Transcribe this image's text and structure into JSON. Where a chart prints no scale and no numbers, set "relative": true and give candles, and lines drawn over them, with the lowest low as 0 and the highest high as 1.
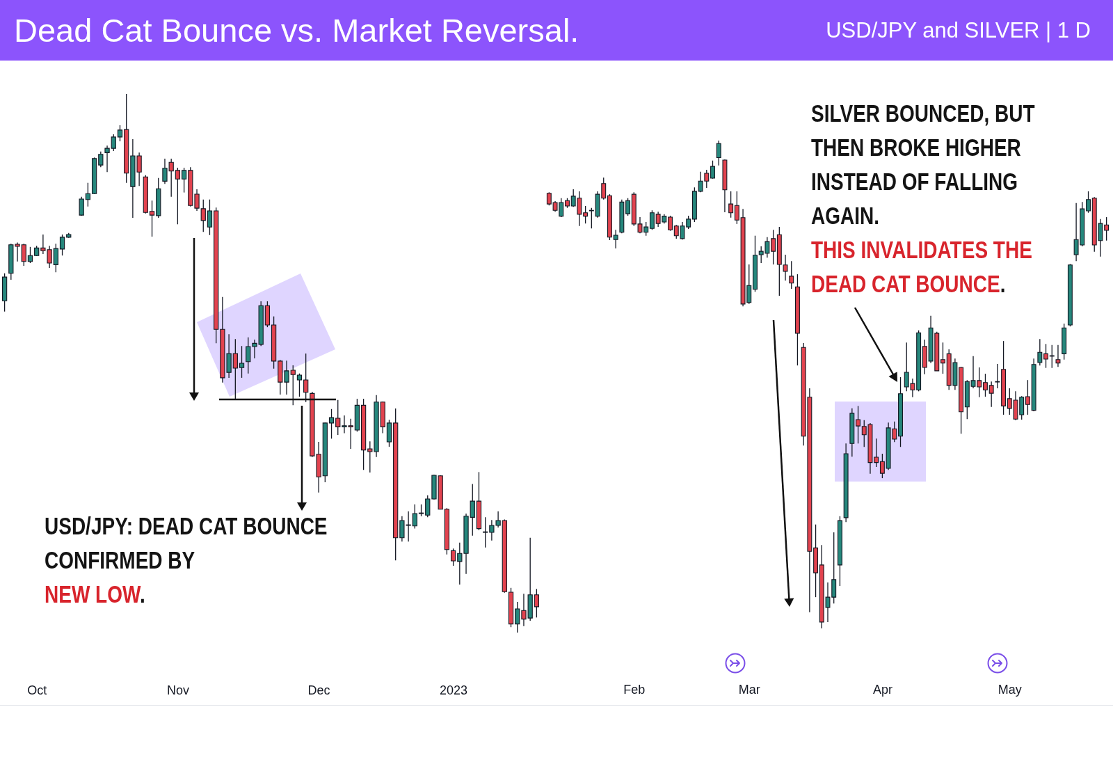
{
  "chart_data": [
    {
      "type": "candlestick",
      "title": "Dead Cat Bounce vs. Market Reversal.",
      "relative": true,
      "annotations": [
        "USD/JPY: DEAD CAT BOUNCE CONFIRMED BY",
        "NEW LOW."
      ],
      "categories": [
        null,
        null,
        null,
        null,
        null,
        "Oct",
        null,
        null,
        null,
        null,
        null,
        null,
        null,
        null,
        null,
        null,
        null,
        null,
        null,
        null,
        null,
        null,
        null,
        null,
        null,
        null,
        null,
        "Nov",
        null,
        null,
        null,
        null,
        null,
        null,
        null,
        null,
        null,
        null,
        null,
        null,
        null,
        null,
        null,
        null,
        null,
        null,
        null,
        null,
        null,
        "Dec",
        null,
        null,
        null,
        null,
        null,
        null,
        null,
        null,
        null,
        null,
        null,
        null,
        null,
        null,
        null,
        null,
        null,
        null,
        null,
        null,
        "2023",
        null,
        null,
        null,
        null,
        null,
        null,
        null,
        null,
        null,
        null,
        null,
        null,
        null
      ],
      "ohlc": [
        [
          0.616,
          0.667,
          0.596,
          0.66
        ],
        [
          0.667,
          0.722,
          0.655,
          0.72
        ],
        [
          0.721,
          0.724,
          0.689,
          0.717
        ],
        [
          0.72,
          0.722,
          0.681,
          0.689
        ],
        [
          0.689,
          0.716,
          0.686,
          0.7
        ],
        [
          0.7,
          0.718,
          0.699,
          0.714
        ],
        [
          0.714,
          0.739,
          0.703,
          0.709
        ],
        [
          0.711,
          0.718,
          0.677,
          0.686
        ],
        [
          0.683,
          0.722,
          0.669,
          0.713
        ],
        [
          0.712,
          0.739,
          0.7,
          0.734
        ],
        [
          0.734,
          0.742,
          0.733,
          0.739
        ],
        null,
        [
          0.775,
          0.809,
          0.774,
          0.805
        ],
        [
          0.804,
          0.835,
          0.791,
          0.815
        ],
        [
          0.815,
          0.882,
          0.814,
          0.88
        ],
        [
          0.868,
          0.893,
          0.864,
          0.888
        ],
        [
          0.891,
          0.904,
          0.855,
          0.899
        ],
        [
          0.899,
          0.925,
          0.894,
          0.92
        ],
        [
          0.92,
          0.942,
          0.912,
          0.933
        ],
        [
          0.934,
          1,
          0.835,
          0.853
        ],
        [
          0.828,
          0.916,
          0.77,
          0.885
        ],
        [
          0.885,
          0.891,
          0.829,
          0.855
        ],
        [
          0.846,
          0.849,
          0.778,
          0.78
        ],
        [
          0.782,
          0.802,
          0.735,
          0.775
        ],
        [
          0.774,
          0.844,
          0.77,
          0.824
        ],
        [
          0.838,
          0.88,
          0.833,
          0.862
        ],
        [
          0.873,
          0.88,
          0.809,
          0.857
        ],
        [
          0.858,
          0.863,
          0.758,
          0.842
        ],
        [
          0.842,
          0.863,
          0.817,
          0.858
        ],
        [
          0.858,
          0.864,
          0.791,
          0.793
        ],
        [
          0.814,
          0.823,
          0.783,
          0.788
        ],
        [
          0.787,
          0.804,
          0.744,
          0.765
        ],
        [
          0.753,
          0.804,
          0.738,
          0.783
        ],
        [
          0.783,
          0.789,
          0.537,
          0.563
        ],
        [
          0.563,
          0.623,
          0.464,
          0.473
        ],
        [
          0.483,
          0.554,
          0.473,
          0.518
        ],
        [
          0.518,
          0.545,
          0.434,
          0.491
        ],
        [
          0.492,
          0.532,
          0.473,
          0.5
        ],
        [
          0.503,
          0.548,
          0.481,
          0.531
        ],
        [
          0.531,
          0.544,
          0.509,
          0.537
        ],
        [
          0.535,
          0.615,
          0.532,
          0.607
        ],
        [
          0.607,
          0.615,
          0.567,
          0.571
        ],
        [
          0.571,
          0.587,
          0.49,
          0.504
        ],
        [
          0.504,
          0.506,
          0.442,
          0.465
        ],
        [
          0.465,
          0.505,
          0.442,
          0.486
        ],
        [
          0.487,
          0.496,
          0.422,
          0.479
        ],
        [
          0.469,
          0.481,
          0.438,
          0.478
        ],
        [
          0.469,
          0.518,
          0.428,
          0.446
        ],
        [
          0.444,
          0.447,
          0.326,
          0.328
        ],
        [
          0.331,
          0.354,
          0.26,
          0.289
        ],
        [
          0.291,
          0.39,
          0.279,
          0.389
        ],
        [
          0.389,
          0.415,
          0.36,
          0.399
        ],
        [
          0.398,
          0.432,
          0.367,
          0.382
        ],
        [
          0.382,
          0.403,
          0.37,
          0.384
        ],
        [
          0.384,
          0.397,
          0.341,
          0.382
        ],
        [
          0.376,
          0.434,
          0.373,
          0.422
        ],
        [
          0.422,
          0.434,
          0.302,
          0.339
        ],
        [
          0.341,
          0.355,
          0.297,
          0.336
        ],
        [
          0.336,
          0.441,
          0.326,
          0.428
        ],
        [
          0.428,
          0.429,
          0.37,
          0.382
        ],
        [
          0.354,
          0.395,
          0.345,
          0.389
        ],
        [
          0.389,
          0.416,
          0.134,
          0.176
        ],
        [
          0.176,
          0.216,
          0.169,
          0.208
        ],
        [
          0.199,
          0.225,
          0.169,
          0.2
        ],
        [
          0.198,
          0.238,
          0.193,
          0.221
        ],
        [
          0.221,
          0.238,
          0.216,
          0.222
        ],
        [
          0.218,
          0.255,
          0.214,
          0.248
        ],
        [
          0.248,
          0.293,
          0.247,
          0.292
        ],
        [
          0.291,
          0.292,
          0.229,
          0.229
        ],
        [
          0.229,
          0.231,
          0.145,
          0.154
        ],
        [
          0.152,
          0.156,
          0.124,
          0.133
        ],
        [
          0.132,
          0.167,
          0.089,
          0.147
        ],
        [
          0.147,
          0.221,
          0.109,
          0.216
        ],
        [
          0.214,
          0.276,
          0.18,
          0.244
        ],
        [
          0.244,
          0.298,
          0.19,
          0.193
        ],
        [
          0.186,
          0.214,
          0.158,
          0.187
        ],
        [
          0.186,
          0.209,
          0.171,
          0.199
        ],
        [
          0.199,
          0.225,
          0.195,
          0.208
        ],
        [
          0.208,
          0.21,
          0.074,
          0.076
        ],
        [
          0.075,
          0.083,
          0.01,
          0.016
        ],
        [
          0.016,
          0.057,
          0,
          0.044
        ],
        [
          0.041,
          0.072,
          0.012,
          0.025
        ],
        [
          0.027,
          0.176,
          0.022,
          0.07
        ],
        [
          0.07,
          0.081,
          0.028,
          0.048
        ]
      ],
      "colors": [
        "#26877c",
        "#26877c",
        "#e2434f",
        "#e2434f",
        "#26877c",
        "#26877c",
        "#e2434f",
        "#e2434f",
        "#26877c",
        "#26877c",
        "#26877c",
        null,
        "#26877c",
        "#26877c",
        "#26877c",
        "#26877c",
        "#26877c",
        "#26877c",
        "#26877c",
        "#e2434f",
        "#26877c",
        "#e2434f",
        "#e2434f",
        "#e2434f",
        "#26877c",
        "#26877c",
        "#e2434f",
        "#e2434f",
        "#26877c",
        "#e2434f",
        "#e2434f",
        "#e2434f",
        "#26877c",
        "#e2434f",
        "#e2434f",
        "#26877c",
        "#e2434f",
        "#26877c",
        "#26877c",
        "#26877c",
        "#26877c",
        "#e2434f",
        "#e2434f",
        "#e2434f",
        "#26877c",
        "#e2434f",
        "#26877c",
        "#e2434f",
        "#e2434f",
        "#e2434f",
        "#26877c",
        "#26877c",
        "#e2434f",
        "#26877c",
        "#e2434f",
        "#26877c",
        "#e2434f",
        "#e2434f",
        "#26877c",
        "#e2434f",
        "#26877c",
        "#e2434f",
        "#26877c",
        "#26877c",
        "#26877c",
        "#26877c",
        "#26877c",
        "#26877c",
        "#e2434f",
        "#e2434f",
        "#e2434f",
        "#26877c",
        "#26877c",
        "#26877c",
        "#e2434f",
        "#26877c",
        "#26877c",
        "#26877c",
        "#e2434f",
        "#e2434f",
        "#26877c",
        "#e2434f",
        "#26877c",
        "#e2434f"
      ]
    },
    {
      "type": "candlestick",
      "subtitle": "USD/JPY and SILVER | 1 D",
      "relative": true,
      "annotations": [
        "SILVER BOUNCED, BUT THEN BROKE HIGHER INSTEAD OF FALLING AGAIN.",
        "THIS INVALIDATES THE DEAD CAT BOUNCE."
      ],
      "categories": [
        null,
        null,
        null,
        null,
        null,
        null,
        null,
        null,
        null,
        null,
        null,
        null,
        null,
        null,
        "Feb",
        null,
        null,
        null,
        null,
        null,
        null,
        null,
        null,
        null,
        null,
        null,
        null,
        null,
        null,
        null,
        null,
        null,
        null,
        "Mar",
        null,
        null,
        null,
        null,
        null,
        null,
        null,
        null,
        null,
        null,
        null,
        null,
        null,
        null,
        null,
        null,
        null,
        null,
        null,
        null,
        null,
        "Apr",
        null,
        null,
        null,
        null,
        null,
        null,
        null,
        null,
        null,
        null,
        null,
        null,
        null,
        null,
        null,
        null,
        null,
        null,
        null,
        null,
        "May",
        null,
        null,
        null,
        null,
        null,
        null,
        null,
        null,
        null,
        null,
        null,
        null,
        null,
        null,
        null,
        null
      ],
      "ohlc": [
        [
          0.892,
          0.894,
          0.867,
          0.87
        ],
        [
          0.873,
          0.876,
          0.854,
          0.857
        ],
        [
          0.845,
          0.882,
          0.843,
          0.873
        ],
        [
          0.877,
          0.882,
          0.862,
          0.866
        ],
        [
          0.866,
          0.9,
          0.864,
          0.886
        ],
        [
          0.882,
          0.896,
          0.825,
          0.849
        ],
        [
          0.852,
          0.866,
          0.83,
          0.845
        ],
        [
          0.856,
          0.862,
          0.82,
          0.857
        ],
        [
          0.845,
          0.896,
          0.842,
          0.89
        ],
        [
          0.912,
          0.924,
          0.879,
          0.882
        ],
        [
          0.887,
          0.89,
          0.796,
          0.802
        ],
        [
          0.797,
          0.817,
          0.779,
          0.806
        ],
        [
          0.812,
          0.879,
          0.81,
          0.874
        ],
        [
          0.85,
          0.882,
          0.846,
          0.877
        ],
        [
          0.89,
          0.894,
          0.825,
          0.829
        ],
        [
          0.829,
          0.843,
          0.81,
          0.812
        ],
        [
          0.812,
          0.833,
          0.805,
          0.823
        ],
        [
          0.82,
          0.857,
          0.817,
          0.852
        ],
        [
          0.849,
          0.854,
          0.823,
          0.83
        ],
        [
          0.833,
          0.849,
          0.83,
          0.845
        ],
        [
          0.843,
          0.846,
          0.815,
          0.817
        ],
        [
          0.825,
          0.827,
          0.799,
          0.805
        ],
        [
          0.799,
          0.833,
          0.797,
          0.825
        ],
        [
          0.823,
          0.846,
          0.819,
          0.839
        ],
        [
          0.839,
          0.904,
          0.833,
          0.896
        ],
        [
          0.896,
          0.936,
          0.894,
          0.917
        ],
        [
          0.933,
          0.94,
          0.903,
          0.917
        ],
        [
          0.923,
          0.959,
          0.922,
          0.947
        ],
        [
          0.965,
          1,
          0.949,
          0.994
        ],
        [
          0.96,
          0.961,
          0.853,
          0.899
        ],
        [
          0.87,
          0.896,
          0.842,
          0.852
        ],
        [
          0.867,
          0.896,
          0.829,
          0.837
        ],
        [
          0.842,
          0.86,
          0.66,
          0.665
        ],
        [
          0.668,
          0.746,
          0.665,
          0.703
        ],
        [
          0.695,
          0.805,
          0.69,
          0.765
        ],
        [
          0.766,
          0.783,
          0.749,
          0.773
        ],
        [
          0.769,
          0.802,
          0.76,
          0.793
        ],
        [
          0.799,
          0.817,
          0.746,
          0.773
        ],
        [
          0.807,
          0.823,
          0.682,
          0.746
        ],
        [
          0.745,
          0.766,
          0.713,
          0.732
        ],
        [
          0.722,
          0.753,
          0.696,
          0.708
        ],
        [
          0.7,
          0.726,
          0.539,
          0.605
        ],
        [
          0.576,
          0.585,
          0.375,
          0.394
        ],
        [
          0.474,
          0.492,
          0.033,
          0.158
        ],
        [
          0.165,
          0.213,
          0.064,
          0.114
        ],
        [
          0.13,
          0.171,
          0,
          0.013
        ],
        [
          0.043,
          0.094,
          0.013,
          0.064
        ],
        [
          0.064,
          0.197,
          0.051,
          0.1
        ],
        [
          0.13,
          0.23,
          0.087,
          0.221
        ],
        [
          0.227,
          0.379,
          0.218,
          0.358
        ],
        [
          0.379,
          0.451,
          0.352,
          0.441
        ],
        [
          0.428,
          0.456,
          0.379,
          0.415
        ],
        [
          0.414,
          0.427,
          0.372,
          0.397
        ],
        [
          0.418,
          0.421,
          0.317,
          0.34
        ],
        [
          0.351,
          0.389,
          0.331,
          0.34
        ],
        [
          0.342,
          0.358,
          0.308,
          0.318
        ],
        [
          0.328,
          0.422,
          0.325,
          0.411
        ],
        [
          0.409,
          0.424,
          0.382,
          0.388
        ],
        [
          0.394,
          0.515,
          0.372,
          0.481
        ],
        [
          0.495,
          0.586,
          0.486,
          0.525
        ],
        [
          0.502,
          0.512,
          0.474,
          0.489
        ],
        [
          0.489,
          0.611,
          0.486,
          0.606
        ],
        [
          0.578,
          0.592,
          0.521,
          0.535
        ],
        [
          0.548,
          0.641,
          0.544,
          0.616
        ],
        [
          0.605,
          0.608,
          0.528,
          0.528
        ],
        [
          0.551,
          0.586,
          0.522,
          0.544
        ],
        [
          0.563,
          0.572,
          0.489,
          0.498
        ],
        [
          0.498,
          0.553,
          0.489,
          0.545
        ],
        [
          0.535,
          0.536,
          0.399,
          0.444
        ],
        [
          0.454,
          0.509,
          0.429,
          0.506
        ],
        [
          0.496,
          0.558,
          0.492,
          0.508
        ],
        [
          0.508,
          0.535,
          0.474,
          0.495
        ],
        [
          0.504,
          0.522,
          0.475,
          0.489
        ],
        [
          0.498,
          0.506,
          0.454,
          0.482
        ],
        [
          0.505,
          0.542,
          0.492,
          0.506
        ],
        [
          0.531,
          0.589,
          0.438,
          0.456
        ],
        [
          0.471,
          0.492,
          0.438,
          0.451
        ],
        [
          0.468,
          0.486,
          0.427,
          0.429
        ],
        [
          0.438,
          0.476,
          0.428,
          0.474
        ],
        [
          0.475,
          0.509,
          0.438,
          0.459
        ],
        [
          0.447,
          0.553,
          0.445,
          0.541
        ],
        [
          0.545,
          0.593,
          0.539,
          0.566
        ],
        [
          0.563,
          0.583,
          0.534,
          0.552
        ],
        [
          0.558,
          0.581,
          0.534,
          0.559
        ],
        [
          0.551,
          0.581,
          0.536,
          0.544
        ],
        [
          0.563,
          0.625,
          0.551,
          0.616
        ],
        [
          0.622,
          0.747,
          0.619,
          0.745
        ],
        [
          0.766,
          0.872,
          0.753,
          0.797
        ],
        [
          0.786,
          0.874,
          0.783,
          0.86
        ],
        [
          0.856,
          0.896,
          0.852,
          0.879
        ],
        [
          0.882,
          0.884,
          0.772,
          0.786
        ],
        [
          0.795,
          0.839,
          0.762,
          0.83
        ],
        [
          0.827,
          0.843,
          0.795,
          0.816
        ]
      ],
      "colors": [
        "#e2434f",
        "#e2434f",
        "#26877c",
        "#e2434f",
        "#26877c",
        "#e2434f",
        "#e2434f",
        "#26877c",
        "#26877c",
        "#e2434f",
        "#e2434f",
        "#26877c",
        "#26877c",
        "#26877c",
        "#e2434f",
        "#e2434f",
        "#26877c",
        "#26877c",
        "#e2434f",
        "#26877c",
        "#e2434f",
        "#e2434f",
        "#26877c",
        "#26877c",
        "#26877c",
        "#26877c",
        "#e2434f",
        "#26877c",
        "#26877c",
        "#e2434f",
        "#e2434f",
        "#e2434f",
        "#e2434f",
        "#26877c",
        "#26877c",
        "#26877c",
        "#26877c",
        "#e2434f",
        "#e2434f",
        "#e2434f",
        "#e2434f",
        "#e2434f",
        "#e2434f",
        "#e2434f",
        "#e2434f",
        "#e2434f",
        "#26877c",
        "#26877c",
        "#26877c",
        "#26877c",
        "#26877c",
        "#e2434f",
        "#e2434f",
        "#e2434f",
        "#e2434f",
        "#e2434f",
        "#26877c",
        "#e2434f",
        "#26877c",
        "#26877c",
        "#e2434f",
        "#26877c",
        "#e2434f",
        "#26877c",
        "#e2434f",
        "#e2434f",
        "#e2434f",
        "#26877c",
        "#e2434f",
        "#26877c",
        "#26877c",
        "#e2434f",
        "#e2434f",
        "#e2434f",
        "#26877c",
        "#e2434f",
        "#e2434f",
        "#e2434f",
        "#26877c",
        "#e2434f",
        "#26877c",
        "#26877c",
        "#e2434f",
        "#26877c",
        "#e2434f",
        "#26877c",
        "#26877c",
        "#26877c",
        "#26877c",
        "#26877c",
        "#e2434f",
        "#26877c",
        "#e2434f"
      ]
    }
  ]
}
